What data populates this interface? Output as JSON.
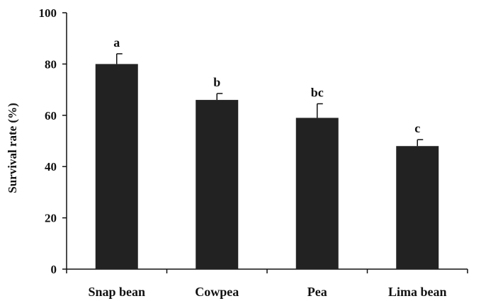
{
  "chart_data": {
    "type": "bar",
    "title": "",
    "xlabel": "",
    "ylabel": "Survival rate (%)",
    "ylim": [
      0,
      100
    ],
    "yticks": [
      0,
      20,
      40,
      60,
      80,
      100
    ],
    "categories": [
      "Snap bean",
      "Cowpea",
      "Pea",
      "Lima bean"
    ],
    "values": [
      80,
      66,
      59,
      48
    ],
    "errors": [
      4,
      2.5,
      5.5,
      2.5
    ],
    "significance_letters": [
      "a",
      "b",
      "bc",
      "c"
    ],
    "grid": false,
    "bar_color": "#222222"
  }
}
